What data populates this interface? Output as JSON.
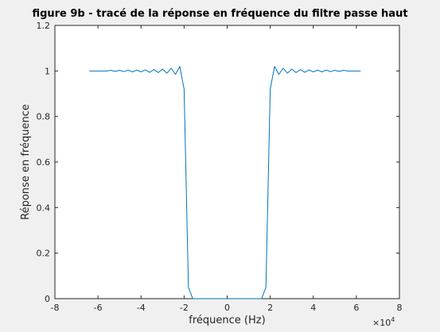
{
  "chart_data": {
    "type": "line",
    "title": "figure 9b - tracé de la réponse en fréquence du filtre passe haut",
    "xlabel": "fréquence (Hz)",
    "ylabel": "Réponse en fréquence",
    "x_exponent_base": "×10",
    "x_exponent_power": "4",
    "xlim": [
      -8,
      8
    ],
    "ylim": [
      0,
      1.2
    ],
    "x_ticks": [
      -8,
      -6,
      -4,
      -2,
      0,
      2,
      4,
      6,
      8
    ],
    "x_tick_labels": [
      "-8",
      "-6",
      "-4",
      "-2",
      "0",
      "2",
      "4",
      "6",
      "8"
    ],
    "y_ticks": [
      0,
      0.2,
      0.4,
      0.6,
      0.8,
      1,
      1.2
    ],
    "y_tick_labels": [
      "0",
      "0.2",
      "0.4",
      "0.6",
      "0.8",
      "1",
      "1.2"
    ],
    "grid": false,
    "line_color": "#0072bd",
    "series": [
      {
        "x": [
          -6.4,
          -6.0,
          -5.6,
          -5.4,
          -5.2,
          -5.0,
          -4.8,
          -4.6,
          -4.4,
          -4.2,
          -4.0,
          -3.8,
          -3.6,
          -3.4,
          -3.2,
          -3.0,
          -2.8,
          -2.6,
          -2.4,
          -2.2,
          -2.0,
          -1.8,
          -1.6,
          -1.4,
          -1.2,
          -1.0,
          -0.8,
          -0.6,
          -0.4,
          -0.2,
          0.0,
          0.2,
          0.4,
          0.6,
          0.8,
          1.0,
          1.2,
          1.4,
          1.6,
          1.8,
          2.0,
          2.2,
          2.4,
          2.6,
          2.8,
          3.0,
          3.2,
          3.4,
          3.6,
          3.8,
          4.0,
          4.2,
          4.4,
          4.6,
          4.8,
          5.0,
          5.2,
          5.4,
          5.6,
          6.0,
          6.2
        ],
        "values": [
          1.0,
          1.0,
          1.0,
          1.003,
          0.998,
          1.003,
          0.997,
          1.004,
          0.996,
          1.004,
          0.996,
          1.005,
          0.994,
          1.006,
          0.993,
          1.008,
          0.99,
          1.012,
          0.985,
          1.02,
          0.92,
          0.05,
          0.0,
          0.0,
          0.0,
          0.0,
          0.0,
          0.0,
          0.0,
          0.0,
          0.0,
          0.0,
          0.0,
          0.0,
          0.0,
          0.0,
          0.0,
          0.0,
          0.0,
          0.05,
          0.92,
          1.02,
          0.985,
          1.012,
          0.99,
          1.008,
          0.993,
          1.006,
          0.994,
          1.005,
          0.996,
          1.004,
          0.996,
          1.004,
          0.997,
          1.003,
          0.998,
          1.003,
          1.0,
          1.0,
          1.0
        ]
      }
    ]
  }
}
